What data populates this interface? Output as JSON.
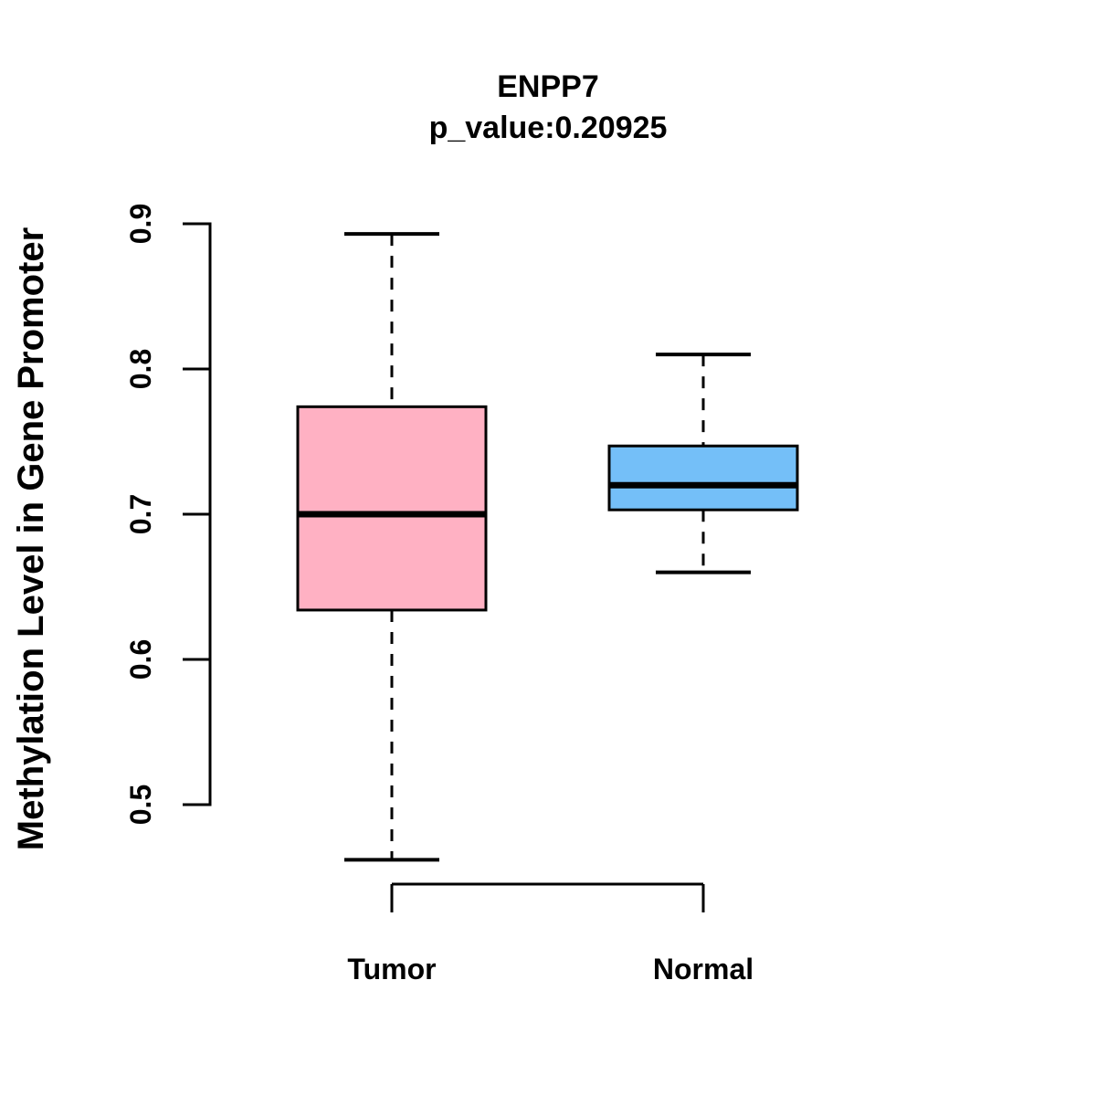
{
  "title": "ENPP7",
  "subtitle": "p_value:0.20925",
  "chart_data": {
    "type": "boxplot",
    "title": "ENPP7",
    "subtitle": "p_value:0.20925",
    "xlabel": "",
    "ylabel": "Methylation Level in Gene Promoter",
    "ylim": [
      0.5,
      0.9
    ],
    "yticks": [
      "0.5",
      "0.6",
      "0.7",
      "0.8",
      "0.9"
    ],
    "grid": false,
    "legend": "none",
    "categories": [
      "Tumor",
      "Normal"
    ],
    "series": [
      {
        "name": "Tumor",
        "color": "#FFB1C3",
        "whisker_low": 0.462,
        "q1": 0.634,
        "median": 0.7,
        "q3": 0.774,
        "whisker_high": 0.893
      },
      {
        "name": "Normal",
        "color": "#74BFF8",
        "whisker_low": 0.66,
        "q1": 0.703,
        "median": 0.72,
        "q3": 0.747,
        "whisker_high": 0.81
      }
    ],
    "colors": {
      "box_border": "#000000",
      "median_line": "#000000",
      "axis": "#000000",
      "background": "#ffffff"
    }
  }
}
